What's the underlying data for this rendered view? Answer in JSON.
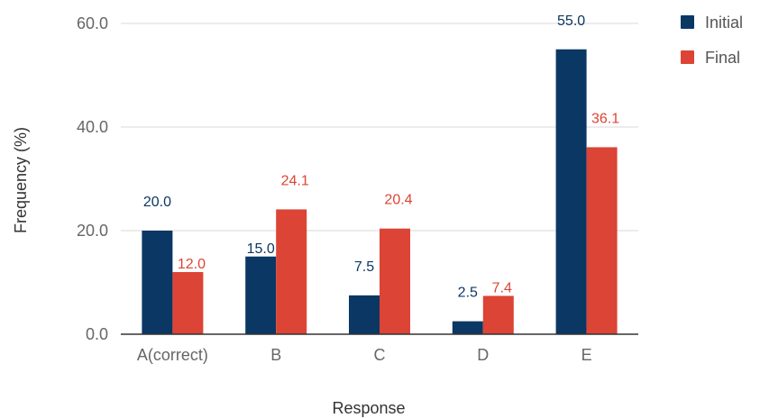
{
  "chart_data": {
    "type": "bar",
    "title": "",
    "xlabel": "Response",
    "ylabel": "Frequency (%)",
    "categories": [
      "A(correct)",
      "B",
      "C",
      "D",
      "E"
    ],
    "ylim": [
      0,
      60
    ],
    "yticks": [
      "0.0",
      "20.0",
      "40.0",
      "60.0"
    ],
    "grid": true,
    "legend": "top-right",
    "series": [
      {
        "name": "Initial",
        "color": "#0b3764",
        "values": [
          20.0,
          15.0,
          7.5,
          2.5,
          55.0
        ],
        "labels": [
          "20.0",
          "15.0",
          "7.5",
          "2.5",
          "55.0"
        ]
      },
      {
        "name": "Final",
        "color": "#dc4435",
        "values": [
          12.0,
          24.1,
          20.4,
          7.4,
          36.1
        ],
        "labels": [
          "12.0",
          "24.1",
          "20.4",
          "7.4",
          "36.1"
        ]
      }
    ]
  }
}
